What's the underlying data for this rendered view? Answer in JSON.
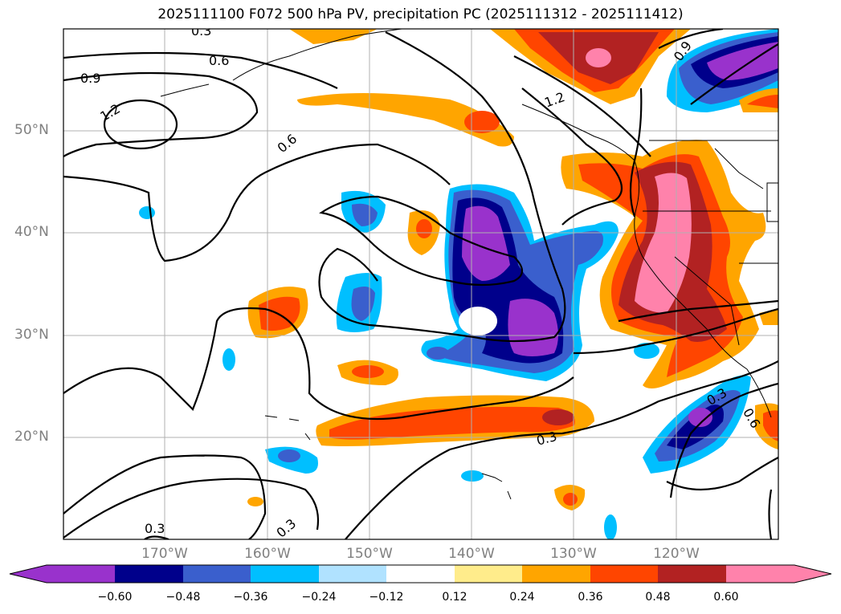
{
  "title": "2025111100 F072 500 hPa PV, precipitation PC (2025111312 - 2025111412)",
  "lat_labels": [
    "50°N",
    "40°N",
    "30°N",
    "20°N"
  ],
  "lon_labels": [
    "170°W",
    "160°W",
    "150°W",
    "140°W",
    "130°W",
    "120°W"
  ],
  "contour_labels": [
    "0.3",
    "0.6",
    "0.9",
    "1.2",
    "0.6",
    "0.9",
    "1.2",
    "0.3",
    "0.3",
    "0.3",
    "0.6",
    "0.3"
  ],
  "colorbar": {
    "ticks": [
      "−0.60",
      "−0.48",
      "−0.36",
      "−0.24",
      "−0.12",
      "0.12",
      "0.24",
      "0.36",
      "0.48",
      "0.60"
    ],
    "colors": [
      "#9932CC",
      "#00008B",
      "#3A5FCD",
      "#00BFFF",
      "#B0E2FF",
      "#FFFFFF",
      "#FFEC8B",
      "#FFA500",
      "#FF4500",
      "#B22222",
      "#FF82AB"
    ]
  },
  "palette": {
    "neg_extreme": "#9932CC",
    "neg_strong": "#00008B",
    "neg_mid": "#3A5FCD",
    "neg_weak": "#00BFFF",
    "pos_weak": "#FFA500",
    "pos_mid": "#FF4500",
    "pos_strong": "#B22222",
    "pos_extreme": "#FF82AB"
  }
}
